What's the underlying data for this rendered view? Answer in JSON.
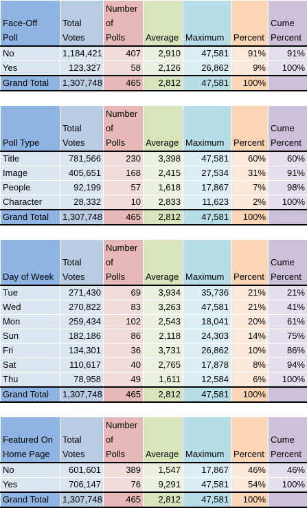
{
  "headers": {
    "total_votes": [
      "Total",
      "Votes"
    ],
    "num_polls": [
      "Number",
      "of",
      "Polls"
    ],
    "average": "Average",
    "maximum": "Maximum",
    "percent": "Percent",
    "cume": [
      "Cume",
      "Percent"
    ]
  },
  "sections": [
    {
      "key_label": [
        "Face-Off",
        "Poll"
      ],
      "rows": [
        [
          "No",
          "1,184,421",
          "407",
          "2,910",
          "47,581",
          "91%",
          "91%"
        ],
        [
          "Yes",
          "123,327",
          "58",
          "2,126",
          "26,862",
          "9%",
          "100%"
        ]
      ],
      "total": [
        "Grand Total",
        "1,307,748",
        "465",
        "2,812",
        "47,581",
        "100%",
        ""
      ]
    },
    {
      "key_label": [
        "Poll Type"
      ],
      "rows": [
        [
          "Title",
          "781,566",
          "230",
          "3,398",
          "47,581",
          "60%",
          "60%"
        ],
        [
          "Image",
          "405,651",
          "168",
          "2,415",
          "27,534",
          "31%",
          "91%"
        ],
        [
          "People",
          "92,199",
          "57",
          "1,618",
          "17,867",
          "7%",
          "98%"
        ],
        [
          "Character",
          "28,332",
          "10",
          "2,833",
          "11,623",
          "2%",
          "100%"
        ]
      ],
      "total": [
        "Grand Total",
        "1,307,748",
        "465",
        "2,812",
        "47,581",
        "100%",
        ""
      ]
    },
    {
      "key_label": [
        "Day of Week"
      ],
      "rows": [
        [
          "Tue",
          "271,430",
          "69",
          "3,934",
          "35,736",
          "21%",
          "21%"
        ],
        [
          "Wed",
          "270,822",
          "83",
          "3,263",
          "47,581",
          "21%",
          "41%"
        ],
        [
          "Mon",
          "259,434",
          "102",
          "2,543",
          "18,041",
          "20%",
          "61%"
        ],
        [
          "Sun",
          "182,186",
          "86",
          "2,118",
          "24,303",
          "14%",
          "75%"
        ],
        [
          "Fri",
          "134,301",
          "36",
          "3,731",
          "26,862",
          "10%",
          "86%"
        ],
        [
          "Sat",
          "110,617",
          "40",
          "2,765",
          "17,878",
          "8%",
          "94%"
        ],
        [
          "Thu",
          "78,958",
          "49",
          "1,611",
          "12,584",
          "6%",
          "100%"
        ]
      ],
      "total": [
        "Grand Total",
        "1,307,748",
        "465",
        "2,812",
        "47,581",
        "100%",
        ""
      ]
    },
    {
      "key_label": [
        "Featured On",
        "Home Page"
      ],
      "rows": [
        [
          "No",
          "601,601",
          "389",
          "1,547",
          "17,867",
          "46%",
          "46%"
        ],
        [
          "Yes",
          "706,147",
          "76",
          "9,291",
          "47,581",
          "54%",
          "100%"
        ]
      ],
      "total": [
        "Grand Total",
        "1,307,748",
        "465",
        "2,812",
        "47,581",
        "100%",
        ""
      ]
    }
  ]
}
